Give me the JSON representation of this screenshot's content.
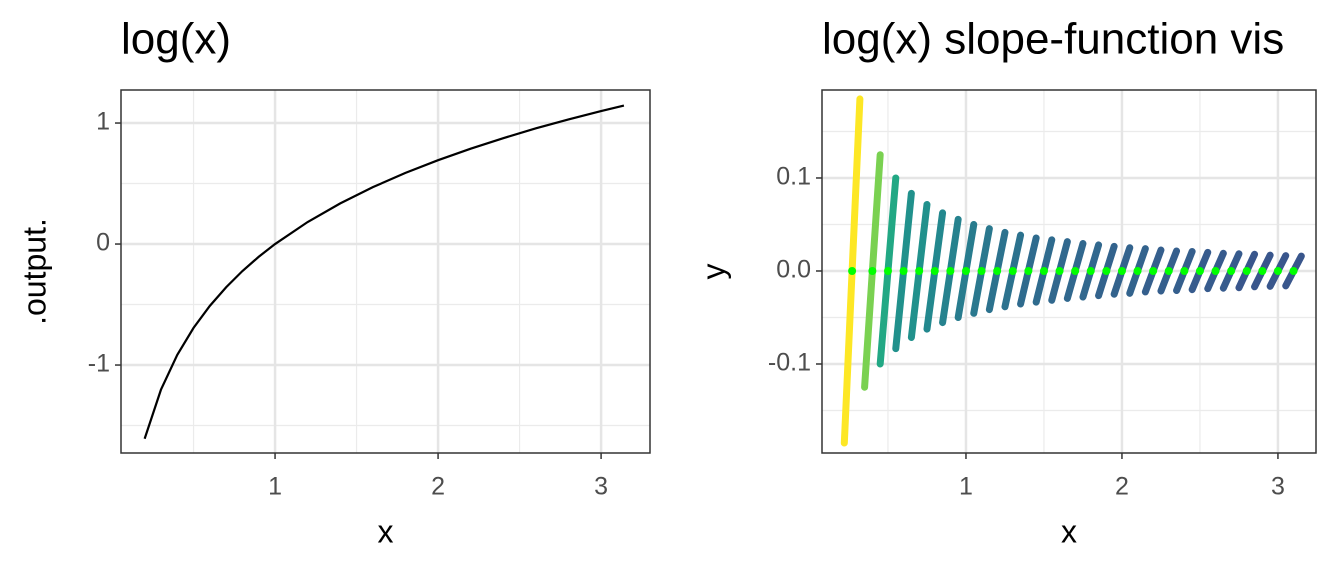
{
  "chart_data": [
    {
      "type": "line",
      "title": "log(x)",
      "x_label": "x",
      "y_label": ".output.",
      "x": [
        0.2,
        0.3,
        0.4,
        0.5,
        0.6,
        0.7,
        0.8,
        0.9,
        1.0,
        1.2,
        1.4,
        1.6,
        1.8,
        2.0,
        2.2,
        2.4,
        2.6,
        2.8,
        3.0,
        3.14
      ],
      "values": [
        -1.609,
        -1.204,
        -0.916,
        -0.693,
        -0.511,
        -0.357,
        -0.223,
        -0.105,
        0,
        0.182,
        0.336,
        0.47,
        0.588,
        0.693,
        0.788,
        0.875,
        0.956,
        1.03,
        1.099,
        1.144
      ],
      "color": "#000000",
      "xlim": [
        0.055,
        3.3
      ],
      "ylim": [
        -1.727,
        1.273
      ],
      "xticks": [
        1,
        2,
        3
      ],
      "yticks": [
        -1,
        0,
        1
      ],
      "xminor": [
        0.5,
        1.5,
        2.5
      ],
      "yminor": [
        -1.5,
        -0.5,
        0.5
      ],
      "grid": true
    },
    {
      "type": "slope",
      "title": "log(x) slope-function vis",
      "x_label": "x",
      "y_label": "y",
      "x": [
        0.27,
        0.4,
        0.5,
        0.6,
        0.7,
        0.8,
        0.9,
        1.0,
        1.1,
        1.2,
        1.3,
        1.4,
        1.5,
        1.6,
        1.7,
        1.8,
        1.9,
        2.0,
        2.1,
        2.2,
        2.3,
        2.4,
        2.5,
        2.6,
        2.7,
        2.8,
        2.9,
        3.0,
        3.1
      ],
      "values": [
        3.7,
        2.5,
        2.0,
        1.67,
        1.43,
        1.25,
        1.11,
        1.0,
        0.91,
        0.83,
        0.77,
        0.71,
        0.67,
        0.63,
        0.59,
        0.56,
        0.53,
        0.5,
        0.48,
        0.45,
        0.43,
        0.42,
        0.4,
        0.38,
        0.37,
        0.36,
        0.34,
        0.33,
        0.32
      ],
      "colors": [
        "#fde725",
        "#7ad151",
        "#22a884",
        "#21918c",
        "#21918c",
        "#23888e",
        "#26828e",
        "#287c8e",
        "#2a788e",
        "#2c728e",
        "#2c728e",
        "#2f6b8e",
        "#2f6b8e",
        "#31688e",
        "#31688e",
        "#31688e",
        "#33638d",
        "#33638d",
        "#33638d",
        "#355f8d",
        "#355f8d",
        "#355f8d",
        "#375b8d",
        "#375b8d",
        "#375b8d",
        "#39568c",
        "#39568c",
        "#39568c",
        "#39568c"
      ],
      "dot_color": "#00ff00",
      "xlim": [
        0.077,
        3.244
      ],
      "ylim": [
        -0.1957,
        0.1946
      ],
      "xticks": [
        1,
        2,
        3
      ],
      "yticks": [
        -0.1,
        {
          "value": 0,
          "label": "0.0"
        },
        0.1
      ],
      "xminor": [
        0.5,
        1.5,
        2.5
      ],
      "yminor": [
        -0.15,
        -0.05,
        0.05,
        0.15
      ],
      "grid": true
    }
  ]
}
